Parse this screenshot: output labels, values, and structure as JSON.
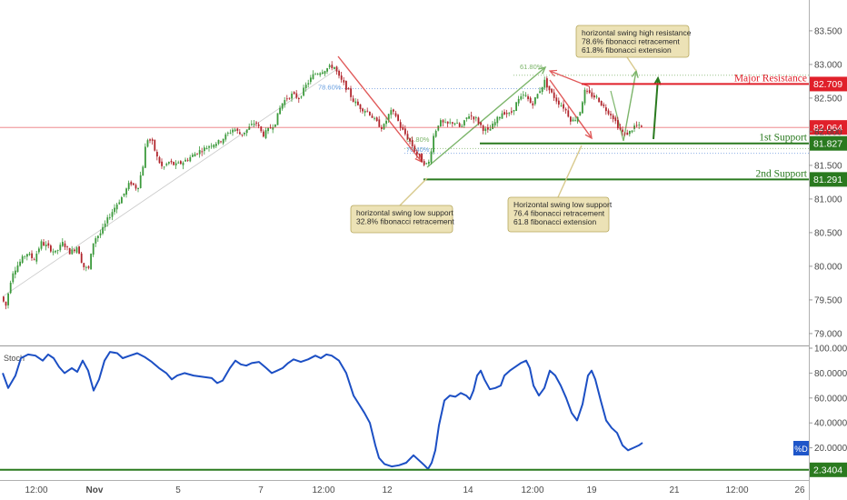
{
  "colors": {
    "up": "#3c9a3c",
    "down": "#b0262d",
    "resistance": "#e0202a",
    "support": "#2a7a1f",
    "stoch": "#1c4fc4",
    "note_bg": "#ece2b6",
    "note_border": "#b6a75d",
    "fib_text": "#6aa0e0",
    "fib_green": "#7cb56a"
  },
  "chart_data": [
    {
      "type": "candlestick",
      "y_axis": {
        "range": [
          78.85,
          83.85
        ],
        "ticks": [
          "83.500",
          "83.000",
          "82.500",
          "82.000",
          "81.500",
          "81.000",
          "80.500",
          "80.000",
          "79.500",
          "79.000"
        ]
      },
      "x_axis": {
        "ticks": [
          "12:00",
          "Nov",
          "5",
          "7",
          "12:00",
          "12",
          "14",
          "12:00",
          "19",
          "21",
          "12:00",
          "26"
        ]
      },
      "levels": [
        {
          "key": "resistance",
          "label": "Major Resistance",
          "value": 82.709,
          "value_label": "82.709",
          "color": "#e0202a"
        },
        {
          "key": "last",
          "label": "",
          "value": 82.064,
          "value_label": "82.064",
          "color": "#e0202a"
        },
        {
          "key": "support1",
          "label": "1st Support",
          "value": 81.827,
          "value_label": "81.827",
          "color": "#2a7a1f"
        },
        {
          "key": "support2",
          "label": "2nd Support",
          "value": 81.291,
          "value_label": "81.291",
          "color": "#2a7a1f"
        }
      ],
      "fib_labels": [
        "78.60%",
        "61.80%",
        "61.80%",
        "76.40%"
      ],
      "annotations": [
        {
          "lines": [
            "horizontal swing high resistance",
            "78.6% fibonacci retracement",
            "61.8% fibonacci extension"
          ]
        },
        {
          "lines": [
            "horizontal swing low support",
            "32.8% fibonacci retracement"
          ]
        },
        {
          "lines": [
            "Horizontal swing low support",
            "76.4 fibonacci retracement",
            "61.8 fibonacci extension"
          ]
        }
      ],
      "series": [
        {
          "name": "",
          "path": [
            [
              0,
              79.55
            ],
            [
              5,
              79.4
            ],
            [
              12,
              79.9
            ],
            [
              20,
              80.05
            ],
            [
              28,
              80.2
            ],
            [
              36,
              80.1
            ],
            [
              44,
              80.35
            ],
            [
              52,
              80.28
            ],
            [
              60,
              80.2
            ],
            [
              68,
              80.35
            ],
            [
              76,
              80.2
            ],
            [
              84,
              80.3
            ],
            [
              90,
              80.0
            ],
            [
              96,
              79.95
            ],
            [
              102,
              80.4
            ],
            [
              110,
              80.5
            ],
            [
              118,
              80.72
            ],
            [
              126,
              80.9
            ],
            [
              134,
              81.05
            ],
            [
              142,
              81.25
            ],
            [
              150,
              81.15
            ],
            [
              156,
              81.5
            ],
            [
              160,
              81.9
            ],
            [
              166,
              81.85
            ],
            [
              172,
              81.6
            ],
            [
              178,
              81.45
            ],
            [
              184,
              81.55
            ],
            [
              192,
              81.5
            ],
            [
              200,
              81.55
            ],
            [
              208,
              81.62
            ],
            [
              216,
              81.7
            ],
            [
              224,
              81.75
            ],
            [
              232,
              81.82
            ],
            [
              240,
              81.85
            ],
            [
              248,
              81.95
            ],
            [
              256,
              82.05
            ],
            [
              264,
              81.95
            ],
            [
              272,
              82.05
            ],
            [
              280,
              82.15
            ],
            [
              288,
              81.95
            ],
            [
              296,
              82.05
            ],
            [
              302,
              82.15
            ],
            [
              308,
              82.4
            ],
            [
              314,
              82.5
            ],
            [
              320,
              82.55
            ],
            [
              328,
              82.5
            ],
            [
              336,
              82.7
            ],
            [
              344,
              82.85
            ],
            [
              352,
              82.9
            ],
            [
              360,
              82.95
            ],
            [
              366,
              82.98
            ],
            [
              372,
              82.8
            ],
            [
              380,
              82.65
            ],
            [
              388,
              82.45
            ],
            [
              396,
              82.35
            ],
            [
              404,
              82.3
            ],
            [
              412,
              82.15
            ],
            [
              420,
              82.05
            ],
            [
              428,
              82.3
            ],
            [
              434,
              82.25
            ],
            [
              440,
              82.05
            ],
            [
              448,
              81.9
            ],
            [
              456,
              81.7
            ],
            [
              464,
              81.55
            ],
            [
              470,
              81.5
            ],
            [
              476,
              81.95
            ],
            [
              482,
              82.15
            ],
            [
              490,
              82.1
            ],
            [
              498,
              82.15
            ],
            [
              506,
              82.05
            ],
            [
              514,
              82.25
            ],
            [
              522,
              82.2
            ],
            [
              530,
              82.05
            ],
            [
              536,
              82.0
            ],
            [
              544,
              82.15
            ],
            [
              552,
              82.3
            ],
            [
              560,
              82.25
            ],
            [
              568,
              82.45
            ],
            [
              576,
              82.55
            ],
            [
              584,
              82.4
            ],
            [
              592,
              82.6
            ],
            [
              598,
              82.75
            ],
            [
              604,
              82.6
            ],
            [
              612,
              82.45
            ],
            [
              620,
              82.35
            ],
            [
              628,
              82.15
            ],
            [
              636,
              82.25
            ],
            [
              642,
              82.6
            ],
            [
              648,
              82.55
            ],
            [
              656,
              82.5
            ],
            [
              664,
              82.35
            ],
            [
              672,
              82.25
            ],
            [
              680,
              82.05
            ],
            [
              686,
              81.95
            ],
            [
              692,
              82.0
            ],
            [
              698,
              82.1
            ],
            [
              704,
              82.06
            ]
          ]
        }
      ]
    },
    {
      "type": "line",
      "title": "Stoch",
      "y_axis": {
        "range": [
          0,
          100
        ],
        "ticks": [
          "100.0000",
          "80.0000",
          "60.0000",
          "40.0000",
          "20.0000"
        ]
      },
      "levels": [
        {
          "label": "",
          "value": 2.3404,
          "value_label": "2.3404"
        }
      ],
      "legend_badge": "%D",
      "series": [
        {
          "name": "",
          "points": [
            [
              0,
              80
            ],
            [
              6,
              68
            ],
            [
              14,
              78
            ],
            [
              20,
              92
            ],
            [
              28,
              95
            ],
            [
              36,
              94
            ],
            [
              44,
              90
            ],
            [
              50,
              95
            ],
            [
              56,
              92
            ],
            [
              62,
              85
            ],
            [
              68,
              80
            ],
            [
              76,
              84
            ],
            [
              82,
              81
            ],
            [
              88,
              90
            ],
            [
              94,
              82
            ],
            [
              100,
              66
            ],
            [
              106,
              75
            ],
            [
              112,
              90
            ],
            [
              118,
              97
            ],
            [
              126,
              96
            ],
            [
              132,
              92
            ],
            [
              140,
              94
            ],
            [
              148,
              96
            ],
            [
              156,
              93
            ],
            [
              164,
              89
            ],
            [
              172,
              84
            ],
            [
              180,
              80
            ],
            [
              186,
              75
            ],
            [
              192,
              78
            ],
            [
              200,
              80
            ],
            [
              210,
              78
            ],
            [
              220,
              77
            ],
            [
              230,
              76
            ],
            [
              236,
              72
            ],
            [
              242,
              74
            ],
            [
              250,
              84
            ],
            [
              256,
              90
            ],
            [
              262,
              87
            ],
            [
              268,
              86
            ],
            [
              274,
              88
            ],
            [
              282,
              89
            ],
            [
              290,
              84
            ],
            [
              296,
              80
            ],
            [
              302,
              82
            ],
            [
              308,
              84
            ],
            [
              314,
              88
            ],
            [
              320,
              91
            ],
            [
              328,
              89
            ],
            [
              336,
              91
            ],
            [
              344,
              94
            ],
            [
              350,
              92
            ],
            [
              356,
              95
            ],
            [
              362,
              94
            ],
            [
              370,
              90
            ],
            [
              378,
              80
            ],
            [
              386,
              62
            ],
            [
              392,
              55
            ],
            [
              398,
              48
            ],
            [
              404,
              40
            ],
            [
              410,
              22
            ],
            [
              414,
              12
            ],
            [
              420,
              7
            ],
            [
              428,
              5
            ],
            [
              436,
              6
            ],
            [
              444,
              8
            ],
            [
              452,
              14
            ],
            [
              458,
              10
            ],
            [
              464,
              6
            ],
            [
              468,
              3
            ],
            [
              472,
              8
            ],
            [
              476,
              18
            ],
            [
              480,
              38
            ],
            [
              486,
              58
            ],
            [
              492,
              62
            ],
            [
              498,
              61
            ],
            [
              504,
              64
            ],
            [
              510,
              62
            ],
            [
              514,
              59
            ],
            [
              518,
              66
            ],
            [
              522,
              78
            ],
            [
              526,
              82
            ],
            [
              530,
              75
            ],
            [
              536,
              67
            ],
            [
              542,
              68
            ],
            [
              548,
              70
            ],
            [
              552,
              78
            ],
            [
              558,
              82
            ],
            [
              564,
              85
            ],
            [
              570,
              88
            ],
            [
              576,
              90
            ],
            [
              580,
              84
            ],
            [
              584,
              70
            ],
            [
              590,
              62
            ],
            [
              596,
              68
            ],
            [
              602,
              82
            ],
            [
              608,
              78
            ],
            [
              614,
              70
            ],
            [
              620,
              60
            ],
            [
              626,
              48
            ],
            [
              632,
              42
            ],
            [
              638,
              55
            ],
            [
              644,
              78
            ],
            [
              648,
              82
            ],
            [
              652,
              75
            ],
            [
              658,
              58
            ],
            [
              664,
              42
            ],
            [
              670,
              36
            ],
            [
              676,
              32
            ],
            [
              682,
              22
            ],
            [
              688,
              18
            ],
            [
              694,
              20
            ],
            [
              700,
              22
            ],
            [
              704,
              24
            ]
          ]
        }
      ]
    }
  ]
}
